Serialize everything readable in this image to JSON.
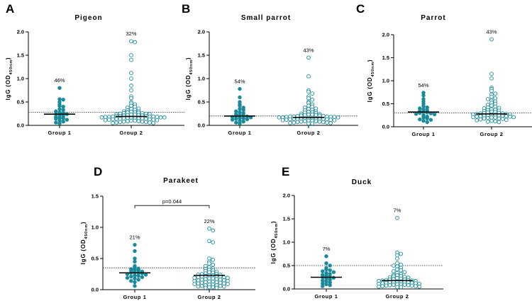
{
  "figure": {
    "type": "scatter-dot-plot"
  },
  "chart_data": [
    {
      "type": "scatter",
      "panel": "A",
      "title": "Pigeon",
      "ylabel": "IgG (OD450nm)",
      "ylabel_main": "IgG (OD",
      "ylabel_sub": "450nm",
      "ylabel_close": ")",
      "ylim": [
        0,
        2.0
      ],
      "yticks": [
        "0.0",
        "0.5",
        "1.0",
        "1.5",
        "2.0"
      ],
      "categories": [
        "Group 1",
        "Group 2"
      ],
      "cutoff": 0.28,
      "medians": [
        0.24,
        0.19
      ],
      "percentages": [
        "46%",
        "32%"
      ],
      "p_value": "",
      "series": [
        {
          "name": "Group 1",
          "filled": true,
          "values": [
            0.8,
            0.56,
            0.55,
            0.5,
            0.45,
            0.42,
            0.4,
            0.35,
            0.33,
            0.3,
            0.28,
            0.26,
            0.24,
            0.24,
            0.22,
            0.2,
            0.18,
            0.16,
            0.15,
            0.14,
            0.12,
            0.1,
            0.08,
            0.06,
            0.04
          ]
        },
        {
          "name": "Group 2",
          "filled": false,
          "values": [
            1.8,
            1.78,
            1.5,
            1.4,
            1.12,
            1.0,
            0.85,
            0.75,
            0.62,
            0.58,
            0.5,
            0.47,
            0.45,
            0.42,
            0.4,
            0.38,
            0.36,
            0.35,
            0.33,
            0.32,
            0.3,
            0.3,
            0.29,
            0.28,
            0.28,
            0.27,
            0.26,
            0.26,
            0.25,
            0.25,
            0.24,
            0.24,
            0.23,
            0.23,
            0.22,
            0.22,
            0.21,
            0.21,
            0.2,
            0.2,
            0.2,
            0.19,
            0.19,
            0.19,
            0.18,
            0.18,
            0.18,
            0.17,
            0.17,
            0.17,
            0.16,
            0.16,
            0.16,
            0.15,
            0.15,
            0.15,
            0.14,
            0.14,
            0.14,
            0.13,
            0.13,
            0.12,
            0.12,
            0.11,
            0.11,
            0.1,
            0.1,
            0.09,
            0.09,
            0.08,
            0.08,
            0.07,
            0.07,
            0.06,
            0.06,
            0.05,
            0.05
          ]
        }
      ]
    },
    {
      "type": "scatter",
      "panel": "B",
      "title": "Small parrot",
      "ylabel": "IgG (OD450nm)",
      "ylabel_main": "IgG (OD",
      "ylabel_sub": "450nm",
      "ylabel_close": ")",
      "ylim": [
        0,
        2.0
      ],
      "yticks": [
        "0.0",
        "0.5",
        "1.0",
        "1.5",
        "2.0"
      ],
      "categories": [
        "Group 1",
        "Group 2"
      ],
      "cutoff": 0.2,
      "medians": [
        0.2,
        0.17
      ],
      "percentages": [
        "54%",
        "43%"
      ],
      "p_value": "",
      "series": [
        {
          "name": "Group 1",
          "filled": true,
          "values": [
            0.78,
            0.6,
            0.5,
            0.45,
            0.42,
            0.38,
            0.35,
            0.33,
            0.3,
            0.28,
            0.26,
            0.24,
            0.22,
            0.21,
            0.2,
            0.19,
            0.18,
            0.17,
            0.16,
            0.15,
            0.14,
            0.13,
            0.12,
            0.1,
            0.08,
            0.06,
            0.04
          ]
        },
        {
          "name": "Group 2",
          "filled": false,
          "values": [
            1.45,
            1.05,
            0.75,
            0.72,
            0.68,
            0.62,
            0.58,
            0.55,
            0.5,
            0.48,
            0.45,
            0.42,
            0.4,
            0.38,
            0.36,
            0.35,
            0.33,
            0.32,
            0.3,
            0.29,
            0.28,
            0.27,
            0.26,
            0.25,
            0.24,
            0.23,
            0.23,
            0.22,
            0.22,
            0.21,
            0.21,
            0.2,
            0.2,
            0.19,
            0.19,
            0.19,
            0.18,
            0.18,
            0.18,
            0.17,
            0.17,
            0.17,
            0.16,
            0.16,
            0.16,
            0.15,
            0.15,
            0.15,
            0.14,
            0.14,
            0.14,
            0.13,
            0.13,
            0.12,
            0.12,
            0.11,
            0.11,
            0.1,
            0.1,
            0.09,
            0.09,
            0.08,
            0.08,
            0.07,
            0.07,
            0.06,
            0.06,
            0.05,
            0.05,
            0.04,
            0.04
          ]
        }
      ]
    },
    {
      "type": "scatter",
      "panel": "C",
      "title": "Parrot",
      "ylabel": "IgG (OD450nm)",
      "ylabel_main": "IgG (OD",
      "ylabel_sub": "450nm",
      "ylabel_close": ")",
      "ylim": [
        0,
        2.0
      ],
      "yticks": [
        "0.0",
        "0.5",
        "1.0",
        "1.5",
        "2.0"
      ],
      "categories": [
        "Group 1",
        "Group 2"
      ],
      "cutoff": 0.3,
      "medians": [
        0.32,
        0.28
      ],
      "percentages": [
        "54%",
        "43%"
      ],
      "p_value": "",
      "series": [
        {
          "name": "Group 1",
          "filled": true,
          "values": [
            0.74,
            0.68,
            0.6,
            0.55,
            0.5,
            0.45,
            0.42,
            0.4,
            0.38,
            0.36,
            0.34,
            0.32,
            0.31,
            0.3,
            0.29,
            0.28,
            0.27,
            0.25,
            0.22,
            0.2,
            0.18,
            0.16,
            0.15,
            0.13,
            0.1
          ]
        },
        {
          "name": "Group 2",
          "filled": false,
          "values": [
            1.9,
            1.15,
            1.05,
            0.85,
            0.82,
            0.78,
            0.72,
            0.7,
            0.65,
            0.62,
            0.6,
            0.57,
            0.55,
            0.52,
            0.5,
            0.48,
            0.46,
            0.44,
            0.42,
            0.41,
            0.4,
            0.38,
            0.37,
            0.36,
            0.35,
            0.34,
            0.33,
            0.32,
            0.31,
            0.3,
            0.3,
            0.29,
            0.29,
            0.28,
            0.28,
            0.27,
            0.27,
            0.26,
            0.26,
            0.25,
            0.25,
            0.24,
            0.24,
            0.23,
            0.23,
            0.22,
            0.22,
            0.21,
            0.21,
            0.2,
            0.2,
            0.19,
            0.18,
            0.18,
            0.17,
            0.16,
            0.15,
            0.14,
            0.13,
            0.12,
            0.11,
            0.1
          ]
        }
      ]
    },
    {
      "type": "scatter",
      "panel": "D",
      "title": "Parakeet",
      "ylabel": "IgG (OD450nm)",
      "ylabel_main": "IgG (OD",
      "ylabel_sub": "450nm",
      "ylabel_close": ")",
      "ylim": [
        0,
        1.5
      ],
      "yticks": [
        "0.0",
        "0.5",
        "1.0",
        "1.5"
      ],
      "categories": [
        "Group 1",
        "Group 2"
      ],
      "cutoff": 0.35,
      "medians": [
        0.27,
        0.23
      ],
      "percentages": [
        "21%",
        "22%"
      ],
      "p_value": "p=0.044",
      "series": [
        {
          "name": "Group 1",
          "filled": true,
          "values": [
            0.72,
            0.62,
            0.5,
            0.45,
            0.38,
            0.36,
            0.34,
            0.33,
            0.32,
            0.31,
            0.3,
            0.29,
            0.28,
            0.27,
            0.27,
            0.26,
            0.25,
            0.24,
            0.23,
            0.22,
            0.21,
            0.2,
            0.19,
            0.18,
            0.16,
            0.14,
            0.12,
            0.06
          ]
        },
        {
          "name": "Group 2",
          "filled": false,
          "values": [
            0.98,
            0.95,
            0.78,
            0.76,
            0.5,
            0.48,
            0.45,
            0.42,
            0.4,
            0.38,
            0.36,
            0.34,
            0.33,
            0.32,
            0.31,
            0.3,
            0.29,
            0.28,
            0.27,
            0.26,
            0.25,
            0.25,
            0.24,
            0.24,
            0.23,
            0.23,
            0.22,
            0.22,
            0.21,
            0.21,
            0.2,
            0.2,
            0.19,
            0.19,
            0.18,
            0.18,
            0.17,
            0.17,
            0.16,
            0.16,
            0.15,
            0.15,
            0.14,
            0.14,
            0.13,
            0.13,
            0.12,
            0.12,
            0.11,
            0.11,
            0.1,
            0.1,
            0.09,
            0.09,
            0.08,
            0.08,
            0.07,
            0.07,
            0.06,
            0.06,
            0.05,
            0.05,
            0.04,
            0.04,
            0.03,
            0.03
          ]
        }
      ]
    },
    {
      "type": "scatter",
      "panel": "E",
      "title": "Duck",
      "ylabel": "IgG (OD450nm)",
      "ylabel_main": "IgG (OD",
      "ylabel_sub": "450nm",
      "ylabel_close": ")",
      "ylim": [
        0,
        2.0
      ],
      "yticks": [
        "0.0",
        "0.5",
        "1.0",
        "1.5",
        "2.0"
      ],
      "categories": [
        "Group 1",
        "Group 2"
      ],
      "cutoff": 0.5,
      "medians": [
        0.25,
        0.18
      ],
      "percentages": [
        "7%",
        "7%"
      ],
      "p_value": "",
      "series": [
        {
          "name": "Group 1",
          "filled": true,
          "values": [
            0.7,
            0.55,
            0.5,
            0.45,
            0.42,
            0.4,
            0.38,
            0.36,
            0.34,
            0.32,
            0.3,
            0.28,
            0.26,
            0.25,
            0.24,
            0.22,
            0.2,
            0.18,
            0.16,
            0.14,
            0.12,
            0.1,
            0.08,
            0.06
          ]
        },
        {
          "name": "Group 2",
          "filled": false,
          "values": [
            1.52,
            0.78,
            0.75,
            0.72,
            0.65,
            0.55,
            0.52,
            0.5,
            0.48,
            0.45,
            0.42,
            0.4,
            0.38,
            0.36,
            0.34,
            0.32,
            0.3,
            0.29,
            0.28,
            0.27,
            0.26,
            0.25,
            0.24,
            0.23,
            0.22,
            0.21,
            0.2,
            0.2,
            0.19,
            0.19,
            0.18,
            0.18,
            0.17,
            0.17,
            0.16,
            0.16,
            0.15,
            0.15,
            0.14,
            0.14,
            0.13,
            0.13,
            0.12,
            0.12,
            0.11,
            0.11,
            0.1,
            0.1,
            0.09,
            0.09,
            0.08,
            0.08,
            0.07,
            0.07,
            0.06,
            0.06,
            0.05,
            0.05,
            0.04,
            0.04
          ]
        }
      ]
    }
  ],
  "colors": {
    "dot": "#1a8a9a",
    "axis": "#000000",
    "cutoff": "#333333"
  }
}
